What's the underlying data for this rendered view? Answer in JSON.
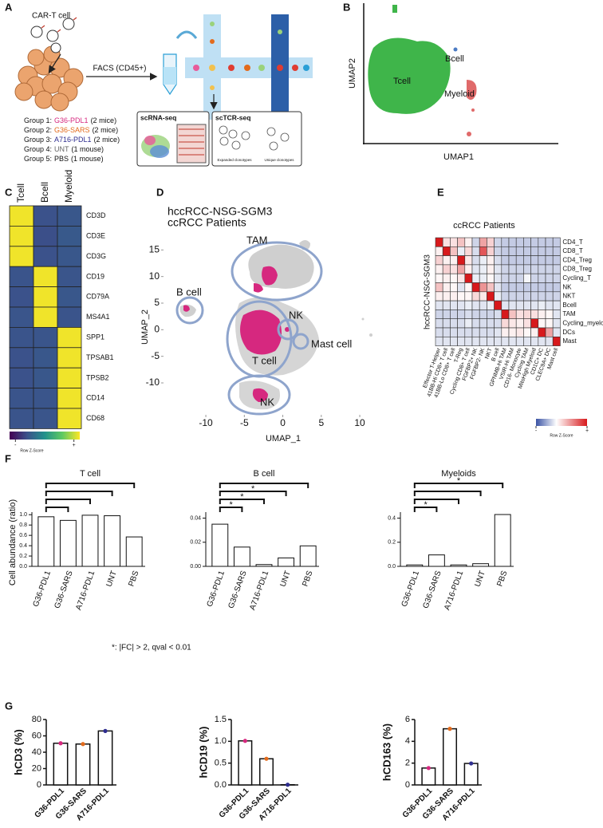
{
  "panel_labels": [
    "A",
    "B",
    "C",
    "D",
    "E",
    "F",
    "G"
  ],
  "panel_a": {
    "cart_cell": "CAR-T cell",
    "facs": "FACS (CD45+)",
    "groups": [
      {
        "prefix": "Group 1:",
        "name": "G36-PDL1",
        "color": "#d6287f",
        "suffix": "(2 mice)"
      },
      {
        "prefix": "Group 2:",
        "name": "G36-SARS",
        "color": "#e36b1c",
        "suffix": "(2 mice)"
      },
      {
        "prefix": "Group 3:",
        "name": "A716-PDL1",
        "color": "#2e2d8f",
        "suffix": "(2 mice)"
      },
      {
        "prefix": "Group 4:",
        "name": "UNT",
        "color": "#666666",
        "suffix": "(1 mouse)"
      },
      {
        "prefix": "Group 5:",
        "name": "PBS",
        "color": "#111111",
        "suffix": "(1 mouse)"
      }
    ],
    "scrna": "scRNA-seq",
    "sctcr": "scTCR-seq",
    "expanded": "Expanded clonotypes",
    "unique": "Unique clonotypes"
  },
  "panel_b": {
    "x_label": "UMAP1",
    "y_label": "UMAP2",
    "clusters": [
      "Bcell",
      "Tcell",
      "Myeloid"
    ]
  },
  "panel_c": {
    "columns": [
      "Tcell",
      "Bcell",
      "Myeloid"
    ],
    "rows": [
      "CD3D",
      "CD3E",
      "CD3G",
      "CD19",
      "CD79A",
      "MS4A1",
      "SPP1",
      "TPSAB1",
      "TPSB2",
      "CD14",
      "CD68"
    ],
    "values": [
      [
        1.15,
        -0.6,
        -0.55
      ],
      [
        1.15,
        -0.62,
        -0.53
      ],
      [
        1.15,
        -0.6,
        -0.55
      ],
      [
        -0.58,
        1.15,
        -0.57
      ],
      [
        -0.6,
        1.15,
        -0.55
      ],
      [
        -0.57,
        1.15,
        -0.58
      ],
      [
        -0.58,
        -0.57,
        1.15
      ],
      [
        -0.6,
        -0.55,
        1.15
      ],
      [
        -0.6,
        -0.55,
        1.15
      ],
      [
        -0.58,
        -0.57,
        1.15
      ],
      [
        -0.58,
        -0.57,
        1.15
      ]
    ],
    "colormap": "viridis",
    "colorbar": {
      "title": "Row Z-Score",
      "lim": [
        -1.2,
        1.2
      ],
      "ticks": [
        {
          "value": -1,
          "label": "-"
        },
        {
          "value": 1,
          "label": "+"
        }
      ]
    }
  },
  "panel_d": {
    "legend": [
      {
        "name": "hccRCC-NSG-SGM3",
        "color": "#d6287f"
      },
      {
        "name": "ccRCC Patients",
        "color": "#aaaaaa"
      }
    ],
    "x_label": "UMAP_1",
    "y_label": "UMAP_2",
    "xlim": [
      -15.5,
      13
    ],
    "ylim": [
      -16,
      17
    ],
    "xticks": [
      -10,
      -5,
      0,
      5,
      10
    ],
    "yticks": [
      -10,
      -5,
      0,
      5,
      10,
      15
    ],
    "clusters": [
      "TAM",
      "B cell",
      "NK",
      "Mast cell",
      "T cell",
      "NK"
    ]
  },
  "panel_e": {
    "title": "ccRCC Patients",
    "y_title": "hccRCC-NSG-SGM3",
    "columns": [
      "Effector T-Helper",
      "41BB-Hi CD8+ T cell",
      "41BB-Lo CD8+ T cell",
      "T-Reg",
      "Cycling CD8+ T cell",
      "FGFBP2+ NK",
      "FGFBP2- NK",
      "NKT",
      "B cell",
      "GPNMB-Hi TAM",
      "VSIR-Hi TAM",
      "CD16- Monocyte",
      "Cycling TAM",
      "MitoHigh Myeloid",
      "CD1C+ DC",
      "CLEC9A+ DC",
      "Mast cell"
    ],
    "rows": [
      "CD4_T",
      "CD8_T",
      "CD4_Treg",
      "CD8_Treg",
      "Cycling_T",
      "NK",
      "NKT",
      "Bcell",
      "TAM",
      "Cycling_myeloids",
      "DCs",
      "Mast"
    ],
    "values": [
      [
        3,
        0.4,
        0.4,
        0.8,
        0.2,
        -0.5,
        1.2,
        0.6,
        -0.5,
        -0.6,
        -0.6,
        -0.6,
        -0.6,
        -0.6,
        -0.6,
        -0.6,
        -0.6
      ],
      [
        0.2,
        3,
        0.8,
        -0.2,
        0.5,
        -0.4,
        2.2,
        0.6,
        -0.5,
        -0.6,
        -0.6,
        -0.6,
        -0.6,
        -0.6,
        -0.6,
        -0.6,
        -0.6
      ],
      [
        0.6,
        0.2,
        0.2,
        3,
        0.3,
        -0.4,
        -0.2,
        0.2,
        -0.4,
        -0.6,
        -0.6,
        -0.6,
        -0.6,
        -0.6,
        -0.6,
        -0.6,
        -0.6
      ],
      [
        0.2,
        0.6,
        0.4,
        1.2,
        0.2,
        -0.3,
        -0.2,
        0.2,
        -0.3,
        -0.5,
        -0.5,
        -0.5,
        -0.5,
        -0.5,
        -0.5,
        -0.5,
        -0.5
      ],
      [
        0.1,
        0.2,
        0.1,
        0.3,
        3,
        -0.2,
        -0.2,
        0.1,
        -0.3,
        -0.5,
        -0.5,
        -0.5,
        -0.1,
        -0.5,
        -0.5,
        -0.5,
        -0.5
      ],
      [
        0.8,
        0.2,
        0.1,
        -0.3,
        0.1,
        3,
        1.4,
        0.8,
        -0.3,
        -0.6,
        -0.6,
        -0.6,
        -0.6,
        -0.6,
        -0.6,
        -0.6,
        -0.6
      ],
      [
        0.2,
        0.2,
        0.2,
        0.1,
        0.1,
        0.5,
        0.3,
        3,
        -0.2,
        -0.5,
        -0.5,
        -0.5,
        -0.5,
        -0.5,
        -0.5,
        -0.5,
        -0.5
      ],
      [
        -0.3,
        -0.3,
        -0.3,
        -0.3,
        -0.2,
        -0.3,
        -0.3,
        -0.2,
        3,
        -0.3,
        -0.3,
        -0.3,
        -0.3,
        -0.3,
        -0.2,
        -0.3,
        -0.3
      ],
      [
        -0.5,
        -0.5,
        -0.5,
        -0.5,
        -0.4,
        -0.5,
        -0.5,
        -0.5,
        -0.4,
        3,
        0.8,
        0.4,
        0.5,
        0.4,
        0.2,
        0.1,
        -0.3
      ],
      [
        -0.4,
        -0.4,
        -0.4,
        -0.4,
        -0.2,
        -0.4,
        -0.4,
        -0.4,
        -0.4,
        0.5,
        0.3,
        0.2,
        0.4,
        3,
        0.1,
        0.1,
        -0.3
      ],
      [
        -0.4,
        -0.4,
        -0.4,
        -0.4,
        -0.4,
        -0.4,
        -0.4,
        -0.4,
        -0.3,
        0.2,
        0.2,
        0.3,
        0.1,
        0.2,
        3,
        1.2,
        -0.3
      ],
      [
        -0.3,
        -0.3,
        -0.3,
        -0.3,
        -0.3,
        -0.3,
        -0.3,
        -0.3,
        -0.3,
        -0.3,
        -0.3,
        -0.3,
        -0.3,
        -0.3,
        -0.3,
        -0.3,
        3
      ]
    ],
    "colorbar": {
      "title": "Row Z-Score",
      "lim": [
        -2,
        3
      ],
      "ticks": [
        {
          "value": -2,
          "label": "-"
        },
        {
          "value": 3,
          "label": "+"
        }
      ]
    }
  },
  "panel_f": {
    "y_label": "Cell abundance (ratio)",
    "footnote": "*: |FC| > 2, qval < 0.01",
    "charts": [
      {
        "type": "bar",
        "title": "T cell",
        "categories": [
          "G36-PDL1",
          "G36-SARS",
          "A716-PDL1",
          "UNT",
          "PBS"
        ],
        "category_colors": [
          "#d6287f",
          "#e36b1c",
          "#2e2d8f",
          "#666666",
          "#111111"
        ],
        "values": [
          0.96,
          0.89,
          0.99,
          0.98,
          0.57
        ],
        "ylim": [
          0,
          1.05
        ],
        "yticks": [
          {
            "value": 0,
            "label": "0.0"
          },
          {
            "value": 0.2,
            "label": "0.2"
          },
          {
            "value": 0.4,
            "label": "0.4"
          },
          {
            "value": 0.6,
            "label": "0.6"
          },
          {
            "value": 0.8,
            "label": "0.8"
          },
          {
            "value": 1,
            "label": "1.0"
          }
        ],
        "comparisons": [
          {
            "from": "G36-PDL1",
            "to": "G36-SARS"
          },
          {
            "from": "G36-PDL1",
            "to": "A716-PDL1"
          },
          {
            "from": "G36-PDL1",
            "to": "UNT"
          },
          {
            "from": "G36-PDL1",
            "to": "PBS"
          }
        ]
      },
      {
        "type": "bar",
        "title": "B cell",
        "categories": [
          "G36-PDL1",
          "G36-SARS",
          "A716-PDL1",
          "UNT",
          "PBS"
        ],
        "category_colors": [
          "#d6287f",
          "#e36b1c",
          "#2e2d8f",
          "#666666",
          "#111111"
        ],
        "values": [
          0.035,
          0.016,
          0.0015,
          0.007,
          0.017
        ],
        "ylim": [
          0,
          0.045
        ],
        "yticks": [
          {
            "value": 0,
            "label": "0.00"
          },
          {
            "value": 0.02,
            "label": "0.02"
          },
          {
            "value": 0.04,
            "label": "0.04"
          }
        ],
        "comparisons": [
          {
            "from": "G36-PDL1",
            "to": "G36-SARS",
            "label": "*"
          },
          {
            "from": "G36-PDL1",
            "to": "A716-PDL1",
            "label": "*"
          },
          {
            "from": "G36-PDL1",
            "to": "UNT",
            "label": "*"
          },
          {
            "from": "G36-PDL1",
            "to": "PBS"
          }
        ]
      },
      {
        "type": "bar",
        "title": "Myeloids",
        "categories": [
          "G36-PDL1",
          "G36-SARS",
          "A716-PDL1",
          "UNT",
          "PBS"
        ],
        "category_colors": [
          "#d6287f",
          "#e36b1c",
          "#2e2d8f",
          "#666666",
          "#111111"
        ],
        "values": [
          0.012,
          0.095,
          0.012,
          0.022,
          0.43
        ],
        "ylim": [
          0,
          0.45
        ],
        "yticks": [
          {
            "value": 0,
            "label": "0.0"
          },
          {
            "value": 0.2,
            "label": "0.2"
          },
          {
            "value": 0.4,
            "label": "0.4"
          }
        ],
        "comparisons": [
          {
            "from": "G36-PDL1",
            "to": "G36-SARS",
            "label": "*"
          },
          {
            "from": "G36-PDL1",
            "to": "A716-PDL1"
          },
          {
            "from": "G36-PDL1",
            "to": "UNT"
          },
          {
            "from": "G36-PDL1",
            "to": "PBS",
            "label": "*"
          }
        ]
      }
    ]
  },
  "panel_g": {
    "charts": [
      {
        "type": "bar",
        "y_label": "hCD3 (%)",
        "categories": [
          "G36-PDL1",
          "G36-SARS",
          "A716-PDL1"
        ],
        "category_colors": [
          "#d6287f",
          "#e36b1c",
          "#2e2d8f"
        ],
        "values": [
          51,
          50,
          66
        ],
        "ylim": [
          0,
          80
        ],
        "yticks": [
          0,
          20,
          40,
          60,
          80
        ]
      },
      {
        "type": "bar",
        "y_label": "hCD19 (%)",
        "categories": [
          "G36-PDL1",
          "G36-SARS",
          "A716-PDL1"
        ],
        "category_colors": [
          "#d6287f",
          "#e36b1c",
          "#2e2d8f"
        ],
        "values": [
          1.01,
          0.6,
          0.005
        ],
        "ylim": [
          0,
          1.5
        ],
        "yticks": [
          {
            "value": 0,
            "label": "0.0"
          },
          {
            "value": 0.5,
            "label": "0.5"
          },
          {
            "value": 1,
            "label": "1.0"
          },
          {
            "value": 1.5,
            "label": "1.5"
          }
        ]
      },
      {
        "type": "bar",
        "y_label": "hCD163 (%)",
        "categories": [
          "G36-PDL1",
          "G36-SARS",
          "A716-PDL1"
        ],
        "category_colors": [
          "#d6287f",
          "#e36b1c",
          "#2e2d8f"
        ],
        "values": [
          1.55,
          5.15,
          1.97
        ],
        "ylim": [
          0,
          6
        ],
        "yticks": [
          0,
          2,
          4,
          6
        ]
      }
    ]
  }
}
